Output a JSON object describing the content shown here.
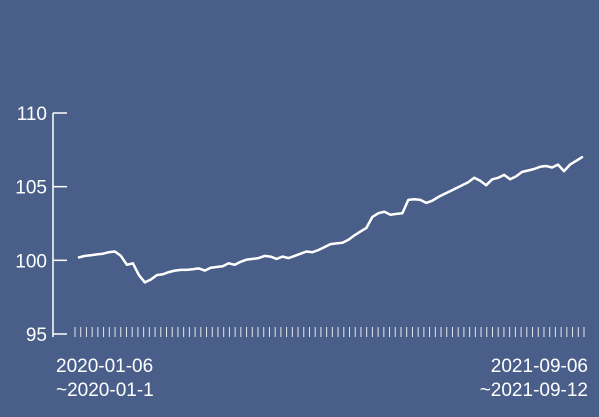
{
  "colors": {
    "background": "#4a5e8a",
    "line": "#ffffff",
    "axis": "#ffffff"
  },
  "chart_data": {
    "type": "line",
    "title": "",
    "xlabel": "",
    "ylabel": "",
    "ylim": [
      95,
      110
    ],
    "y_ticks": [
      95,
      100,
      105,
      110
    ],
    "grid": false,
    "x_range_labels": {
      "start": [
        "2020-01-06",
        "~2020-01-1"
      ],
      "end": [
        "2021-09-06",
        "~2021-09-12"
      ]
    },
    "series": [
      {
        "values": [
          100.2,
          100.3,
          100.35,
          100.4,
          100.45,
          100.55,
          100.6,
          100.3,
          99.7,
          99.8,
          99.0,
          98.5,
          98.7,
          99.0,
          99.05,
          99.2,
          99.3,
          99.35,
          99.35,
          99.4,
          99.45,
          99.3,
          99.5,
          99.55,
          99.6,
          99.8,
          99.7,
          99.9,
          100.05,
          100.1,
          100.15,
          100.3,
          100.25,
          100.1,
          100.25,
          100.15,
          100.3,
          100.45,
          100.6,
          100.55,
          100.7,
          100.9,
          101.1,
          101.15,
          101.2,
          101.4,
          101.7,
          101.95,
          102.2,
          102.95,
          103.2,
          103.3,
          103.1,
          103.15,
          103.2,
          104.1,
          104.15,
          104.1,
          103.9,
          104.05,
          104.3,
          104.5,
          104.7,
          104.9,
          105.1,
          105.3,
          105.6,
          105.4,
          105.1,
          105.5,
          105.6,
          105.8,
          105.5,
          105.7,
          106.0,
          106.1,
          106.2,
          106.35,
          106.4,
          106.3,
          106.5,
          106.05,
          106.5,
          106.75,
          107.0
        ]
      }
    ]
  }
}
